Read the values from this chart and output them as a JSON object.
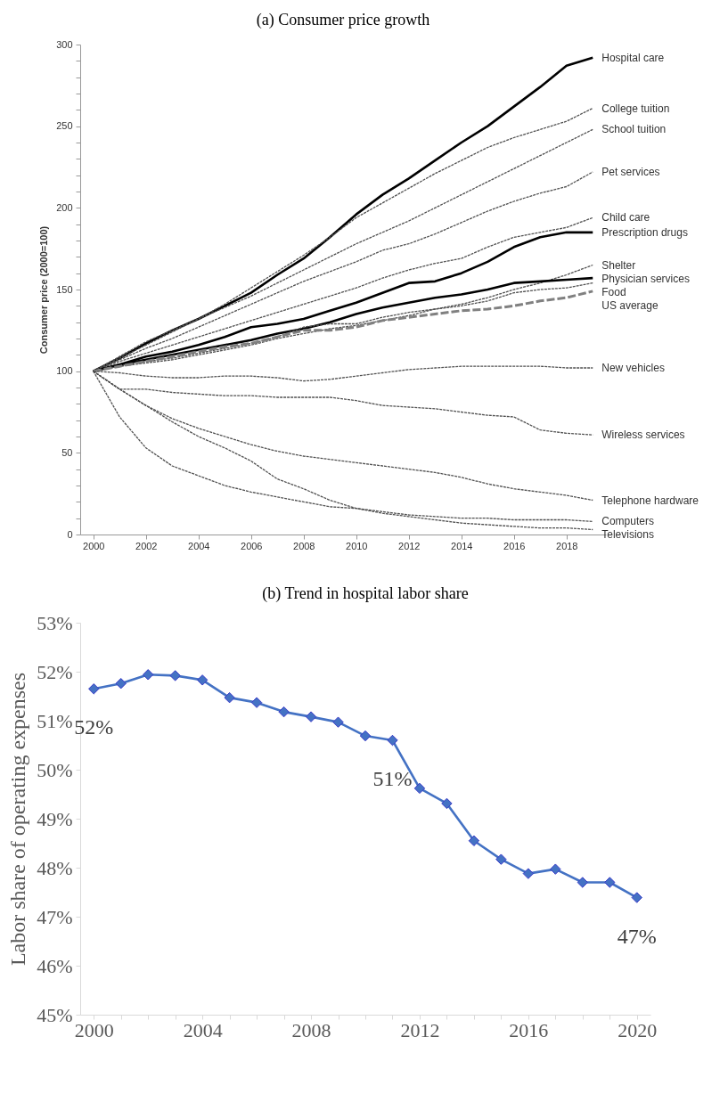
{
  "chart_data": [
    {
      "type": "line",
      "title": "(a) Consumer price growth",
      "ylabel": "Consumer price (2000=100)",
      "x": [
        2000,
        2001,
        2002,
        2003,
        2004,
        2005,
        2006,
        2007,
        2008,
        2009,
        2010,
        2011,
        2012,
        2013,
        2014,
        2015,
        2016,
        2017,
        2018,
        2019
      ],
      "xlim": [
        1999.5,
        2019.5
      ],
      "xticks": [
        2000,
        2002,
        2004,
        2006,
        2008,
        2010,
        2012,
        2014,
        2016,
        2018
      ],
      "ylim": [
        0,
        300
      ],
      "yticks": [
        0,
        {
          "value": 10,
          "label": null
        },
        {
          "value": 20,
          "label": null
        },
        {
          "value": 30,
          "label": null
        },
        {
          "value": 40,
          "label": null
        },
        50,
        {
          "value": 60,
          "label": null
        },
        {
          "value": 70,
          "label": null
        },
        {
          "value": 80,
          "label": null
        },
        {
          "value": 90,
          "label": null
        },
        100,
        {
          "value": 110,
          "label": null
        },
        {
          "value": 120,
          "label": null
        },
        {
          "value": 130,
          "label": null
        },
        {
          "value": 140,
          "label": null
        },
        150,
        {
          "value": 160,
          "label": null
        },
        {
          "value": 170,
          "label": null
        },
        {
          "value": 180,
          "label": null
        },
        {
          "value": 190,
          "label": null
        },
        200,
        {
          "value": 210,
          "label": null
        },
        {
          "value": 220,
          "label": null
        },
        {
          "value": 230,
          "label": null
        },
        {
          "value": 240,
          "label": null
        },
        250,
        {
          "value": 260,
          "label": null
        },
        {
          "value": 270,
          "label": null
        },
        {
          "value": 280,
          "label": null
        },
        {
          "value": 290,
          "label": null
        },
        300
      ],
      "grid": false,
      "legend": false,
      "marker": "none",
      "series": [
        {
          "name": "Hospital care",
          "color": "#000000",
          "line_style": "solid",
          "values": [
            100,
            108,
            117,
            125,
            132,
            140,
            148,
            159,
            169,
            182,
            196,
            208,
            218,
            229,
            240,
            250,
            262,
            274,
            287,
            292
          ]
        },
        {
          "name": "College tuition",
          "color": "#505050",
          "line_style": "dotted",
          "values": [
            100,
            108,
            116,
            124,
            132,
            141,
            151,
            161,
            171,
            182,
            194,
            203,
            212,
            221,
            229,
            237,
            243,
            248,
            253,
            261
          ]
        },
        {
          "name": "School tuition",
          "color": "#505050",
          "line_style": "dotted",
          "values": [
            100,
            109,
            118,
            125,
            132,
            139,
            146,
            154,
            162,
            170,
            178,
            185,
            192,
            200,
            208,
            216,
            224,
            232,
            240,
            248
          ]
        },
        {
          "name": "Pet services",
          "color": "#505050",
          "line_style": "dotted",
          "values": [
            100,
            107,
            114,
            120,
            127,
            134,
            141,
            148,
            155,
            161,
            167,
            174,
            178,
            184,
            191,
            198,
            204,
            209,
            213,
            222
          ]
        },
        {
          "name": "Child care",
          "color": "#505050",
          "line_style": "dotted",
          "values": [
            100,
            106,
            111,
            116,
            121,
            126,
            131,
            136,
            141,
            146,
            151,
            157,
            162,
            166,
            169,
            176,
            182,
            185,
            188,
            194
          ]
        },
        {
          "name": "Prescription drugs",
          "color": "#000000",
          "line_style": "solid",
          "values": [
            100,
            104,
            109,
            112,
            116,
            121,
            127,
            129,
            132,
            137,
            142,
            148,
            154,
            155,
            160,
            167,
            176,
            182,
            185,
            185
          ]
        },
        {
          "name": "Shelter",
          "color": "#505050",
          "line_style": "dotted",
          "values": [
            100,
            103,
            105,
            107,
            110,
            113,
            116,
            120,
            123,
            126,
            128,
            131,
            134,
            138,
            141,
            145,
            150,
            154,
            159,
            165
          ]
        },
        {
          "name": "Physician services",
          "color": "#000000",
          "line_style": "solid",
          "values": [
            100,
            104,
            107,
            110,
            113,
            116,
            119,
            123,
            126,
            130,
            135,
            139,
            142,
            145,
            147,
            150,
            154,
            155,
            156,
            157
          ]
        },
        {
          "name": "Food",
          "color": "#505050",
          "line_style": "dotted",
          "values": [
            100,
            103,
            106,
            108,
            111,
            114,
            117,
            121,
            127,
            129,
            129,
            133,
            136,
            138,
            140,
            143,
            148,
            150,
            151,
            154
          ]
        },
        {
          "name": "US average",
          "color": "#808080",
          "line_style": "dashed",
          "values": [
            100,
            103,
            106,
            109,
            112,
            115,
            117,
            121,
            125,
            125,
            127,
            131,
            133,
            135,
            137,
            138,
            140,
            143,
            145,
            149
          ]
        },
        {
          "name": "New vehicles",
          "color": "#505050",
          "line_style": "dotted",
          "values": [
            100,
            99,
            97,
            96,
            96,
            97,
            97,
            96,
            94,
            95,
            97,
            99,
            101,
            102,
            103,
            103,
            103,
            103,
            102,
            102
          ]
        },
        {
          "name": "Wireless services",
          "color": "#505050",
          "line_style": "dotted",
          "values": [
            100,
            89,
            89,
            87,
            86,
            85,
            85,
            84,
            84,
            84,
            82,
            79,
            78,
            77,
            75,
            73,
            72,
            64,
            62,
            61
          ]
        },
        {
          "name": "Telephone hardware",
          "color": "#505050",
          "line_style": "dotted",
          "values": [
            100,
            89,
            79,
            71,
            65,
            60,
            55,
            51,
            48,
            46,
            44,
            42,
            40,
            38,
            35,
            31,
            28,
            26,
            24,
            21
          ]
        },
        {
          "name": "Computers",
          "color": "#505050",
          "line_style": "dotted",
          "values": [
            100,
            72,
            53,
            42,
            36,
            30,
            26,
            23,
            20,
            17,
            16,
            14,
            12,
            11,
            10,
            10,
            9,
            9,
            9,
            8
          ]
        },
        {
          "name": "Televisions",
          "color": "#505050",
          "line_style": "dotted",
          "values": [
            100,
            89,
            79,
            69,
            60,
            53,
            45,
            34,
            28,
            21,
            16,
            13,
            11,
            9,
            7,
            6,
            5,
            4,
            4,
            3
          ]
        }
      ]
    },
    {
      "type": "line",
      "title": "(b) Trend in hospital labor share",
      "ylabel": "Labor share of operating expenses",
      "x": [
        2000,
        2001,
        2002,
        2003,
        2004,
        2005,
        2006,
        2007,
        2008,
        2009,
        2010,
        2011,
        2012,
        2013,
        2014,
        2015,
        2016,
        2017,
        2018,
        2019,
        2020
      ],
      "xlim": [
        1999.5,
        2020.5
      ],
      "xticks": [
        2000,
        {
          "value": 2001,
          "label": null
        },
        {
          "value": 2002,
          "label": null
        },
        {
          "value": 2003,
          "label": null
        },
        2004,
        {
          "value": 2005,
          "label": null
        },
        {
          "value": 2006,
          "label": null
        },
        {
          "value": 2007,
          "label": null
        },
        2008,
        {
          "value": 2009,
          "label": null
        },
        {
          "value": 2010,
          "label": null
        },
        {
          "value": 2011,
          "label": null
        },
        2012,
        {
          "value": 2013,
          "label": null
        },
        {
          "value": 2014,
          "label": null
        },
        {
          "value": 2015,
          "label": null
        },
        2016,
        {
          "value": 2017,
          "label": null
        },
        {
          "value": 2018,
          "label": null
        },
        {
          "value": 2019,
          "label": null
        },
        2020
      ],
      "ylim": [
        45,
        53
      ],
      "yticks": [
        {
          "value": 45,
          "label": "45%"
        },
        {
          "value": 46,
          "label": "46%"
        },
        {
          "value": 47,
          "label": "47%"
        },
        {
          "value": 48,
          "label": "48%"
        },
        {
          "value": 49,
          "label": "49%"
        },
        {
          "value": 50,
          "label": "50%"
        },
        {
          "value": 51,
          "label": "51%"
        },
        {
          "value": 52,
          "label": "52%"
        },
        {
          "value": 53,
          "label": "53%"
        }
      ],
      "grid": false,
      "legend": false,
      "marker": "diamond",
      "series": [
        {
          "color": "#4472c4",
          "line_style": "solid",
          "values": [
            51.65,
            51.76,
            51.94,
            51.92,
            51.83,
            51.47,
            51.37,
            51.18,
            51.08,
            50.97,
            50.69,
            50.6,
            49.62,
            49.31,
            48.55,
            48.17,
            47.88,
            47.97,
            47.7,
            47.7,
            47.39
          ]
        }
      ],
      "annotations": [
        {
          "text": "52%",
          "x": 2000,
          "y": 51.65
        },
        {
          "text": "51%",
          "x": 2011,
          "y": 50.6
        },
        {
          "text": "47%",
          "x": 2020,
          "y": 47.39
        }
      ]
    }
  ]
}
